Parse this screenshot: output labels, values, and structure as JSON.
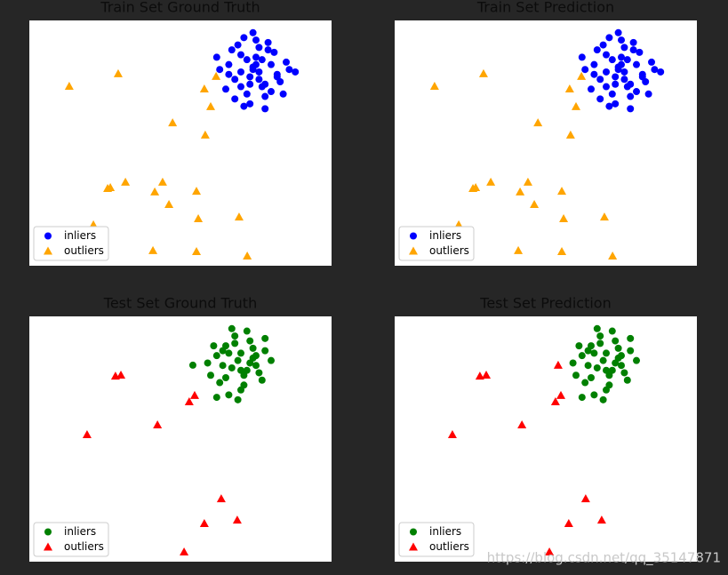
{
  "chart_data": [
    {
      "type": "scatter",
      "title": "Train Set Ground Truth",
      "xlim": [
        0,
        100
      ],
      "ylim": [
        0,
        100
      ],
      "legend": "lower left",
      "series": [
        {
          "name": "inliers",
          "color": "#0000ff",
          "marker": "circle",
          "x": [
            74,
            70,
            78,
            66,
            82,
            75,
            72,
            79,
            68,
            85,
            76,
            71,
            63,
            80,
            74,
            77,
            69,
            83,
            73,
            86,
            65,
            78,
            72,
            81,
            75,
            70,
            67,
            84,
            76,
            79,
            73,
            62,
            88,
            71,
            77,
            74,
            80,
            68,
            75,
            82,
            70,
            78,
            76,
            73,
            66
          ],
          "y": [
            80,
            86,
            74,
            82,
            78,
            92,
            70,
            88,
            76,
            83,
            79,
            65,
            80,
            71,
            95,
            84,
            90,
            75,
            77,
            80,
            72,
            69,
            84,
            87,
            82,
            73,
            88,
            70,
            76,
            91,
            66,
            85,
            79,
            93,
            73,
            81,
            82,
            68,
            85,
            77,
            79,
            64,
            89,
            74,
            78
          ]
        },
        {
          "name": "outliers",
          "color": "#ffa500",
          "marker": "triangle",
          "x": [
            13.2,
            29.4,
            57.9,
            61.8,
            60.0,
            47.4,
            58.2,
            25.9,
            26.8,
            31.8,
            41.5,
            44.1,
            55.3,
            46.2,
            55.9,
            69.4,
            21.2,
            40.9,
            55.3,
            72.1
          ],
          "y": [
            73.2,
            78.3,
            72.1,
            77.2,
            64.9,
            58.3,
            53.3,
            31.5,
            31.9,
            34.1,
            30.1,
            34.1,
            30.4,
            25.0,
            19.2,
            19.9,
            16.7,
            6.2,
            5.8,
            4.0
          ]
        }
      ]
    },
    {
      "type": "scatter",
      "title": "Train Set Prediction",
      "xlim": [
        0,
        100
      ],
      "ylim": [
        0,
        100
      ],
      "legend": "lower left",
      "series": [
        {
          "name": "inliers",
          "color": "#0000ff",
          "marker": "circle",
          "x": [
            74,
            70,
            78,
            66,
            82,
            75,
            72,
            79,
            68,
            85,
            76,
            71,
            63,
            80,
            74,
            77,
            69,
            83,
            73,
            86,
            65,
            78,
            72,
            81,
            75,
            70,
            67,
            84,
            76,
            79,
            73,
            62,
            88,
            71,
            77,
            74,
            80,
            68,
            75,
            82,
            70,
            78,
            76,
            73,
            66
          ],
          "y": [
            80,
            86,
            74,
            82,
            78,
            92,
            70,
            88,
            76,
            83,
            79,
            65,
            80,
            71,
            95,
            84,
            90,
            75,
            77,
            80,
            72,
            69,
            84,
            87,
            82,
            73,
            88,
            70,
            76,
            91,
            66,
            85,
            79,
            93,
            73,
            81,
            82,
            68,
            85,
            77,
            79,
            64,
            89,
            74,
            78
          ]
        },
        {
          "name": "outliers",
          "color": "#ffa500",
          "marker": "triangle",
          "x": [
            13.2,
            29.4,
            57.9,
            61.8,
            60.0,
            47.4,
            58.2,
            25.9,
            26.8,
            31.8,
            41.5,
            44.1,
            55.3,
            46.2,
            55.9,
            69.4,
            21.2,
            40.9,
            55.3,
            72.1
          ],
          "y": [
            73.2,
            78.3,
            72.1,
            77.2,
            64.9,
            58.3,
            53.3,
            31.5,
            31.9,
            34.1,
            30.1,
            34.1,
            30.4,
            25.0,
            19.2,
            19.9,
            16.7,
            6.2,
            5.8,
            4.0
          ]
        }
      ]
    },
    {
      "type": "scatter",
      "title": "Test Set Ground Truth",
      "xlim": [
        0,
        100
      ],
      "ylim": [
        0,
        100
      ],
      "legend": "lower left",
      "series": [
        {
          "name": "inliers",
          "color": "#008000",
          "marker": "circle",
          "x": [
            69,
            65,
            72,
            62,
            75,
            68,
            71,
            60,
            78,
            66,
            73,
            64,
            70,
            77,
            67,
            61,
            74,
            69,
            80,
            63,
            72,
            66,
            76,
            70,
            68,
            59,
            74,
            71,
            65,
            78,
            62,
            73,
            67,
            75,
            70,
            64,
            54.1
          ],
          "y": [
            82,
            88,
            78,
            84,
            80,
            92,
            72,
            76,
            86,
            68,
            90,
            80,
            85,
            74,
            79,
            88,
            83,
            66,
            82,
            73,
            94,
            85,
            77,
            70,
            89,
            81,
            87,
            76,
            75,
            91,
            67,
            81,
            95,
            84,
            78,
            86,
            80.1
          ]
        },
        {
          "name": "outliers",
          "color": "#ff0000",
          "marker": "triangle",
          "x": [
            28.5,
            30.3,
            52.9,
            54.7,
            42.4,
            19.1,
            63.5,
            57.9,
            68.8,
            51.2
          ],
          "y": [
            75.7,
            76.1,
            65.2,
            67.8,
            55.8,
            51.8,
            25.7,
            15.6,
            17.0,
            4.0
          ]
        }
      ]
    },
    {
      "type": "scatter",
      "title": "Test Set Prediction",
      "xlim": [
        0,
        100
      ],
      "ylim": [
        0,
        100
      ],
      "legend": "lower left",
      "series": [
        {
          "name": "inliers",
          "color": "#008000",
          "marker": "circle",
          "x": [
            69,
            65,
            72,
            62,
            75,
            68,
            71,
            60,
            78,
            66,
            73,
            64,
            70,
            77,
            67,
            61,
            74,
            69,
            80,
            63,
            72,
            66,
            76,
            70,
            68,
            59,
            74,
            71,
            65,
            78,
            62,
            73,
            67,
            75,
            70,
            64
          ],
          "y": [
            82,
            88,
            78,
            84,
            80,
            92,
            72,
            76,
            86,
            68,
            90,
            80,
            85,
            74,
            79,
            88,
            83,
            66,
            82,
            73,
            94,
            85,
            77,
            70,
            89,
            81,
            87,
            76,
            75,
            91,
            67,
            81,
            95,
            84,
            78,
            86
          ]
        },
        {
          "name": "outliers",
          "color": "#ff0000",
          "marker": "triangle",
          "x": [
            28.2,
            30.3,
            54.1,
            55.0,
            53.2,
            42.1,
            19.1,
            63.2,
            57.6,
            68.5,
            51.2
          ],
          "y": [
            75.7,
            76.1,
            80.1,
            67.8,
            65.2,
            55.8,
            51.8,
            25.7,
            15.6,
            17.0,
            4.0
          ]
        }
      ]
    }
  ],
  "watermark": "https://blog.csdn.net/qq_35147871"
}
